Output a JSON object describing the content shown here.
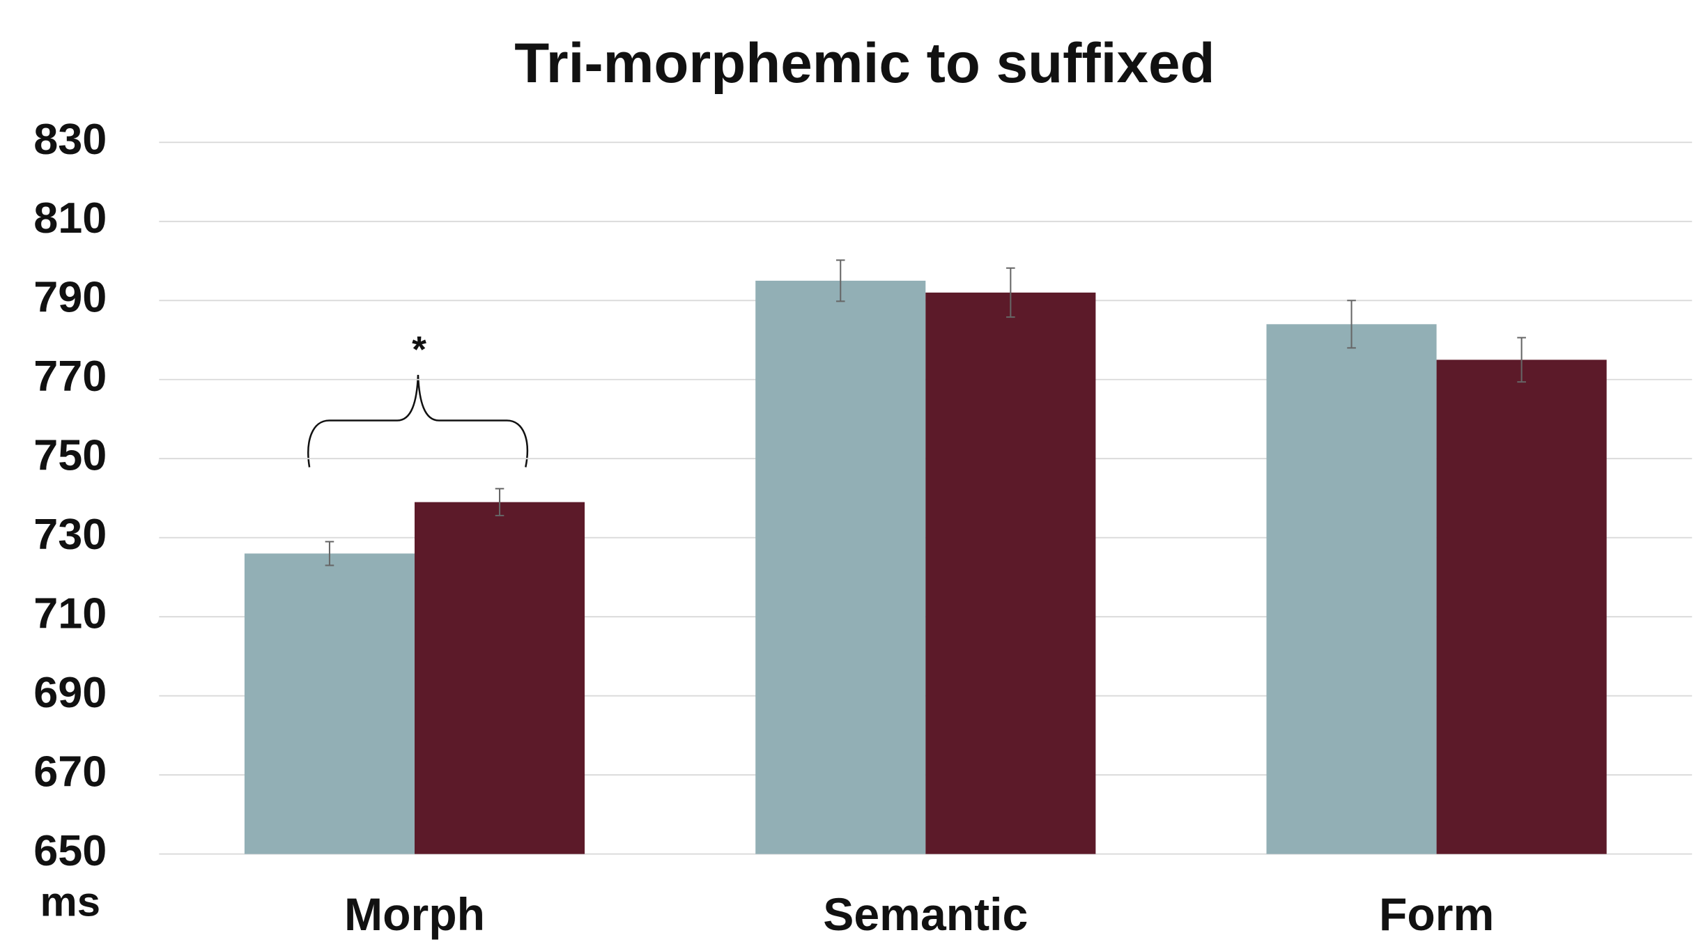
{
  "chart_data": {
    "type": "bar",
    "title": "Tri-morphemic to suffixed",
    "y_label": "ms",
    "annotation": "*",
    "annotation_color": "#e8141c",
    "categories": [
      "Morph",
      "Semantic",
      "Form"
    ],
    "series": [
      {
        "color": "#92afb5",
        "values": [
          726,
          795,
          784
        ],
        "errors": [
          3,
          5.2,
          6
        ]
      },
      {
        "color": "#5c1a29",
        "values": [
          739,
          792,
          775
        ],
        "errors": [
          3.4,
          6.2,
          5.6
        ]
      }
    ],
    "ylim": [
      650,
      830
    ],
    "yticks": [
      650,
      670,
      690,
      710,
      730,
      750,
      770,
      790,
      810,
      830
    ],
    "grid": true
  }
}
